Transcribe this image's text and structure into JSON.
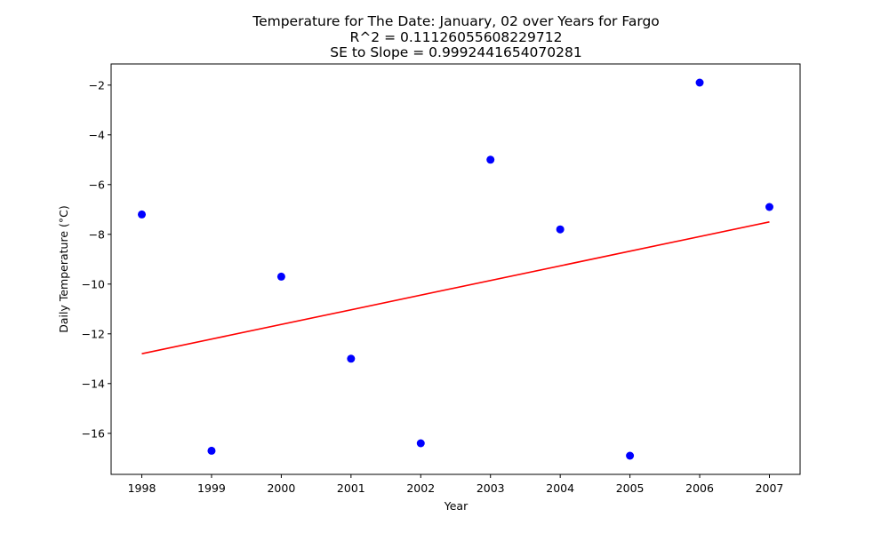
{
  "chart_data": {
    "type": "scatter",
    "title_lines": [
      "Temperature for The Date: January, 02 over Years for Fargo",
      "R^2 = 0.11126055608229712",
      "SE to Slope = 0.9992441654070281"
    ],
    "xlabel": "Year",
    "ylabel": "Daily Temperature (°C)",
    "x": [
      1998,
      1999,
      2000,
      2001,
      2002,
      2003,
      2004,
      2005,
      2006,
      2007
    ],
    "y": [
      -7.2,
      -16.7,
      -9.7,
      -13.0,
      -16.4,
      -5.0,
      -7.8,
      -16.9,
      -1.9,
      -6.9
    ],
    "point_color": "#0000ff",
    "trendline": {
      "x": [
        1998,
        2007
      ],
      "y": [
        -12.8,
        -7.5
      ],
      "color": "#ff0000"
    },
    "xlim": [
      1997.56,
      2007.44
    ],
    "ylim": [
      -17.65,
      -1.15
    ],
    "xticks": [
      1998,
      1999,
      2000,
      2001,
      2002,
      2003,
      2004,
      2005,
      2006,
      2007
    ],
    "yticks": [
      -16,
      -14,
      -12,
      -10,
      -8,
      -6,
      -4,
      -2
    ],
    "grid": false,
    "legend": "none"
  }
}
